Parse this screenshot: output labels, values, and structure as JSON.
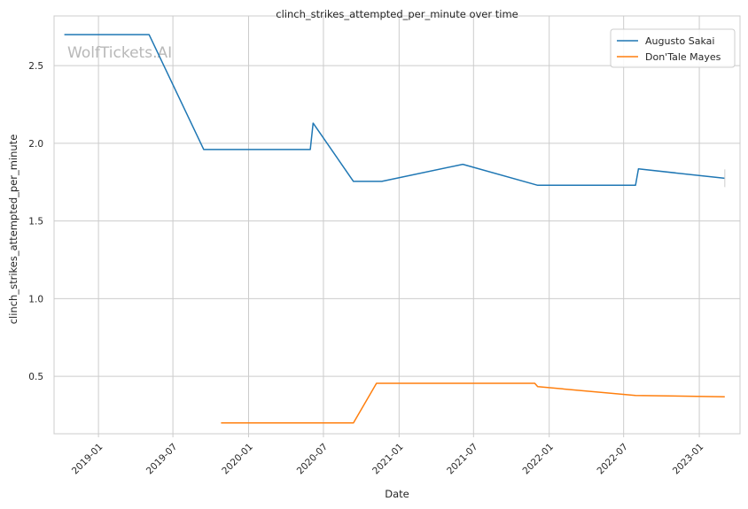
{
  "chart_data": {
    "type": "line",
    "title": "clinch_strikes_attempted_per_minute over time",
    "xlabel": "Date",
    "ylabel": "clinch_strikes_attempted_per_minute",
    "watermark": "WolfTickets.AI",
    "xlim": [
      "2018-09-15",
      "2023-04-10"
    ],
    "ylim": [
      0.13,
      2.82
    ],
    "x_ticks": [
      "2019-01",
      "2019-07",
      "2020-01",
      "2020-07",
      "2021-01",
      "2021-07",
      "2022-01",
      "2022-07",
      "2023-01"
    ],
    "y_ticks": [
      "0.5",
      "1.0",
      "1.5",
      "2.0",
      "2.5"
    ],
    "grid": true,
    "legend_position": "top-right",
    "series": [
      {
        "name": "Augusto Sakai",
        "color": "#1f77b4",
        "points": [
          {
            "x": "2018-10-10",
            "y": 2.7
          },
          {
            "x": "2019-05-04",
            "y": 2.7
          },
          {
            "x": "2019-09-14",
            "y": 1.96
          },
          {
            "x": "2020-05-30",
            "y": 1.96
          },
          {
            "x": "2020-06-06",
            "y": 2.13
          },
          {
            "x": "2020-09-12",
            "y": 1.755
          },
          {
            "x": "2020-11-20",
            "y": 1.755
          },
          {
            "x": "2021-06-05",
            "y": 1.865
          },
          {
            "x": "2021-12-04",
            "y": 1.73
          },
          {
            "x": "2022-07-30",
            "y": 1.73
          },
          {
            "x": "2022-08-06",
            "y": 1.835
          },
          {
            "x": "2023-03-04",
            "y": 1.775
          }
        ]
      },
      {
        "name": "Don'Tale Mayes",
        "color": "#ff7f0e",
        "points": [
          {
            "x": "2019-10-26",
            "y": 0.2
          },
          {
            "x": "2020-09-12",
            "y": 0.2
          },
          {
            "x": "2020-11-07",
            "y": 0.455
          },
          {
            "x": "2021-11-27",
            "y": 0.455
          },
          {
            "x": "2021-12-04",
            "y": 0.433
          },
          {
            "x": "2022-07-30",
            "y": 0.377
          },
          {
            "x": "2023-03-04",
            "y": 0.368
          }
        ]
      }
    ]
  }
}
